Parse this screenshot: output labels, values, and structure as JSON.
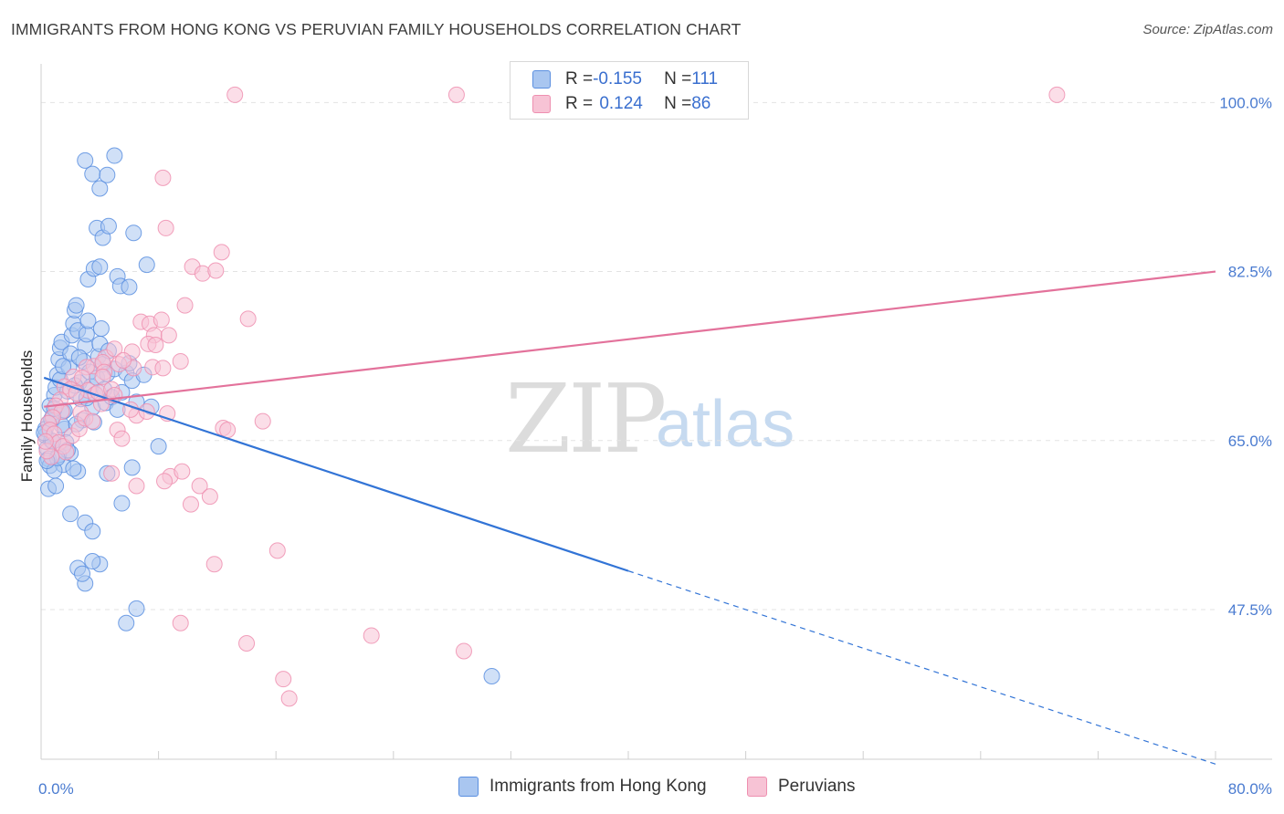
{
  "chart_data": {
    "type": "scatter",
    "title": "IMMIGRANTS FROM HONG KONG VS PERUVIAN FAMILY HOUSEHOLDS CORRELATION CHART",
    "source": "Source: ZipAtlas.com",
    "xlabel": "",
    "ylabel": "Family Households",
    "xlim": [
      0,
      80
    ],
    "ylim": [
      32,
      104
    ],
    "x_ticks": [
      {
        "value": 0,
        "label": "0.0%"
      },
      {
        "value": 80,
        "label": "80.0%"
      }
    ],
    "y_ticks": [
      {
        "value": 100,
        "label": "100.0%"
      },
      {
        "value": 82.5,
        "label": "82.5%"
      },
      {
        "value": 65,
        "label": "65.0%"
      },
      {
        "value": 47.5,
        "label": "47.5%"
      }
    ],
    "watermark": {
      "zip": "ZIP",
      "atlas": "atlas"
    },
    "legend": [
      {
        "r_label": "R = ",
        "r_value": "-0.155",
        "n_label": "N = ",
        "n_value": "111"
      },
      {
        "r_label": "R = ",
        "r_value": "0.124",
        "n_label": "N = ",
        "n_value": "86"
      }
    ],
    "series": [
      {
        "name": "Immigrants from Hong Kong",
        "color": "#5b8fe0",
        "fill": "#a9c6f0",
        "line_color": "#3274d6",
        "trend": {
          "x0": 0.2,
          "y0": 71.5,
          "x1": 40,
          "y1": 51.5,
          "x_dash_end": 80,
          "y_dash_end": 31.5
        },
        "points": [
          [
            0.3,
            65.5
          ],
          [
            0.4,
            64.2
          ],
          [
            0.5,
            63.1
          ],
          [
            0.5,
            66.8
          ],
          [
            0.6,
            62.4
          ],
          [
            0.7,
            65.0
          ],
          [
            0.8,
            67.5
          ],
          [
            0.9,
            69.7
          ],
          [
            1.0,
            70.5
          ],
          [
            1.1,
            71.8
          ],
          [
            1.2,
            73.4
          ],
          [
            1.3,
            74.6
          ],
          [
            1.4,
            75.2
          ],
          [
            1.5,
            68.0
          ],
          [
            1.6,
            66.2
          ],
          [
            1.7,
            64.8
          ],
          [
            1.8,
            70.1
          ],
          [
            1.9,
            72.6
          ],
          [
            2.0,
            74.0
          ],
          [
            2.1,
            75.9
          ],
          [
            2.2,
            77.1
          ],
          [
            2.3,
            78.5
          ],
          [
            2.4,
            79.0
          ],
          [
            2.5,
            76.4
          ],
          [
            2.6,
            71.0
          ],
          [
            2.7,
            69.3
          ],
          [
            2.8,
            67.1
          ],
          [
            2.9,
            73.2
          ],
          [
            3.0,
            74.8
          ],
          [
            3.1,
            76.0
          ],
          [
            3.2,
            77.4
          ],
          [
            3.3,
            72.1
          ],
          [
            3.4,
            70.6
          ],
          [
            3.5,
            68.4
          ],
          [
            3.6,
            66.9
          ],
          [
            3.7,
            69.8
          ],
          [
            3.8,
            71.5
          ],
          [
            3.9,
            73.7
          ],
          [
            4.0,
            75.0
          ],
          [
            4.1,
            76.6
          ],
          [
            4.2,
            72.9
          ],
          [
            4.3,
            70.3
          ],
          [
            4.4,
            68.9
          ],
          [
            4.5,
            71.9
          ],
          [
            4.6,
            74.3
          ],
          [
            4.8,
            69.5
          ],
          [
            5.0,
            72.4
          ],
          [
            5.2,
            68.2
          ],
          [
            5.5,
            70.0
          ],
          [
            5.8,
            72.0
          ],
          [
            6.0,
            73.0
          ],
          [
            6.2,
            71.2
          ],
          [
            6.5,
            69.0
          ],
          [
            7.0,
            71.8
          ],
          [
            7.5,
            68.5
          ],
          [
            8.0,
            64.4
          ],
          [
            0.5,
            60.0
          ],
          [
            1.0,
            60.3
          ],
          [
            1.5,
            62.5
          ],
          [
            2.0,
            63.7
          ],
          [
            2.5,
            61.8
          ],
          [
            3.0,
            56.5
          ],
          [
            3.5,
            55.6
          ],
          [
            4.0,
            52.2
          ],
          [
            3.0,
            94.0
          ],
          [
            3.5,
            92.6
          ],
          [
            4.0,
            91.1
          ],
          [
            4.5,
            92.5
          ],
          [
            5.0,
            94.5
          ],
          [
            3.8,
            87.0
          ],
          [
            4.2,
            86.0
          ],
          [
            4.6,
            87.2
          ],
          [
            6.3,
            86.5
          ],
          [
            3.2,
            81.7
          ],
          [
            3.6,
            82.8
          ],
          [
            4.0,
            83.0
          ],
          [
            5.2,
            82.0
          ],
          [
            5.4,
            81.0
          ],
          [
            7.2,
            83.2
          ],
          [
            6.0,
            80.9
          ],
          [
            2.0,
            57.4
          ],
          [
            2.5,
            51.8
          ],
          [
            3.0,
            50.2
          ],
          [
            3.5,
            52.5
          ],
          [
            5.5,
            58.5
          ],
          [
            6.5,
            47.6
          ],
          [
            5.8,
            46.1
          ],
          [
            2.8,
            51.2
          ],
          [
            6.2,
            62.2
          ],
          [
            4.5,
            61.6
          ],
          [
            2.2,
            62.1
          ],
          [
            1.2,
            63.5
          ],
          [
            0.8,
            64.9
          ],
          [
            1.4,
            66.6
          ],
          [
            0.3,
            66.2
          ],
          [
            0.6,
            68.6
          ],
          [
            1.8,
            64.0
          ],
          [
            2.4,
            66.7
          ],
          [
            0.9,
            61.9
          ],
          [
            1.1,
            63.2
          ],
          [
            0.4,
            62.9
          ],
          [
            0.7,
            67.2
          ],
          [
            1.6,
            68.1
          ],
          [
            2.3,
            70.7
          ],
          [
            3.1,
            69.4
          ],
          [
            1.3,
            71.3
          ],
          [
            0.2,
            65.8
          ],
          [
            0.9,
            68.3
          ],
          [
            1.5,
            72.7
          ],
          [
            2.6,
            73.6
          ],
          [
            30.7,
            40.6
          ]
        ]
      },
      {
        "name": "Peruvians",
        "color": "#ee8fb0",
        "fill": "#f7c3d5",
        "line_color": "#e3729b",
        "trend": {
          "x0": 0.2,
          "y0": 68.5,
          "x1": 80,
          "y1": 82.5
        },
        "points": [
          [
            13.2,
            100.8
          ],
          [
            28.3,
            100.8
          ],
          [
            69.2,
            100.8
          ],
          [
            8.3,
            92.2
          ],
          [
            8.5,
            87.0
          ],
          [
            12.3,
            84.5
          ],
          [
            10.3,
            83.0
          ],
          [
            11.0,
            82.3
          ],
          [
            11.9,
            82.6
          ],
          [
            9.8,
            79.0
          ],
          [
            14.1,
            77.6
          ],
          [
            6.8,
            77.3
          ],
          [
            7.4,
            77.1
          ],
          [
            8.2,
            77.5
          ],
          [
            7.7,
            75.9
          ],
          [
            8.7,
            75.9
          ],
          [
            7.3,
            75.0
          ],
          [
            7.8,
            74.9
          ],
          [
            9.5,
            73.2
          ],
          [
            4.4,
            73.6
          ],
          [
            5.0,
            74.5
          ],
          [
            6.2,
            74.2
          ],
          [
            3.6,
            72.7
          ],
          [
            4.2,
            73.1
          ],
          [
            7.6,
            72.6
          ],
          [
            6.3,
            72.5
          ],
          [
            8.3,
            72.5
          ],
          [
            5.3,
            72.9
          ],
          [
            5.6,
            73.3
          ],
          [
            4.3,
            72.1
          ],
          [
            3.1,
            72.6
          ],
          [
            2.2,
            71.6
          ],
          [
            2.8,
            71.5
          ],
          [
            3.2,
            70.2
          ],
          [
            1.6,
            70.6
          ],
          [
            2.0,
            70.3
          ],
          [
            2.4,
            69.9
          ],
          [
            3.7,
            69.8
          ],
          [
            4.1,
            68.8
          ],
          [
            3.9,
            70.0
          ],
          [
            4.8,
            70.3
          ],
          [
            1.3,
            69.2
          ],
          [
            1.0,
            68.6
          ],
          [
            1.4,
            68.0
          ],
          [
            2.7,
            67.9
          ],
          [
            0.8,
            67.4
          ],
          [
            0.5,
            66.8
          ],
          [
            0.6,
            66.1
          ],
          [
            0.9,
            65.7
          ],
          [
            1.2,
            64.8
          ],
          [
            1.5,
            64.4
          ],
          [
            1.7,
            63.8
          ],
          [
            0.7,
            63.3
          ],
          [
            0.4,
            63.9
          ],
          [
            0.3,
            64.9
          ],
          [
            2.1,
            65.5
          ],
          [
            2.6,
            66.2
          ],
          [
            3.0,
            67.3
          ],
          [
            3.5,
            67.0
          ],
          [
            5.2,
            66.1
          ],
          [
            5.5,
            65.2
          ],
          [
            6.5,
            67.6
          ],
          [
            6.1,
            68.2
          ],
          [
            7.2,
            68.0
          ],
          [
            8.6,
            67.8
          ],
          [
            12.4,
            66.3
          ],
          [
            12.7,
            66.1
          ],
          [
            15.1,
            67.0
          ],
          [
            8.8,
            61.3
          ],
          [
            9.6,
            61.8
          ],
          [
            10.8,
            60.3
          ],
          [
            11.5,
            59.2
          ],
          [
            10.2,
            58.4
          ],
          [
            6.5,
            60.3
          ],
          [
            4.8,
            61.6
          ],
          [
            8.4,
            60.8
          ],
          [
            16.1,
            53.6
          ],
          [
            11.8,
            52.2
          ],
          [
            9.5,
            46.1
          ],
          [
            14.0,
            44.0
          ],
          [
            22.5,
            44.8
          ],
          [
            28.8,
            43.2
          ],
          [
            16.5,
            40.3
          ],
          [
            16.9,
            38.3
          ],
          [
            4.2,
            71.6
          ],
          [
            5.0,
            69.7
          ]
        ]
      }
    ]
  },
  "bottom_legend": [
    "Immigrants from Hong Kong",
    "Peruvians"
  ]
}
